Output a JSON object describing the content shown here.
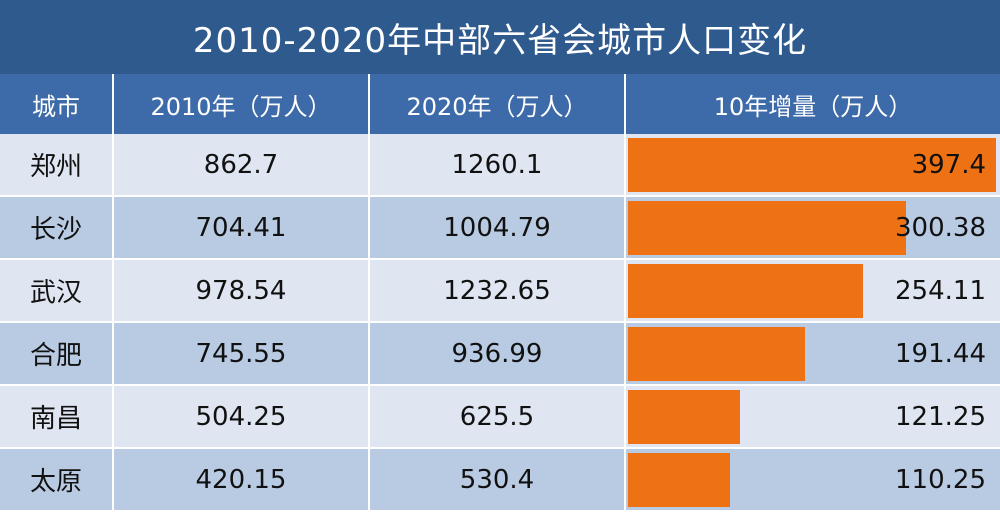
{
  "colors": {
    "title_bg": "#2e5a8e",
    "header_bg": "#3d6aa8",
    "bar": "#ee7213",
    "row_light": "#dfe6f1",
    "row_dark": "#b9cbe3"
  },
  "chart_data": {
    "type": "table",
    "title": "2010-2020年中部六省会城市人口变化",
    "columns": [
      "城市",
      "2010年（万人）",
      "2020年（万人）",
      "10年增量（万人）"
    ],
    "rows": [
      {
        "city": "郑州",
        "y2010": "862.7",
        "y2020": "1260.1",
        "increase": "397.4"
      },
      {
        "city": "长沙",
        "y2010": "704.41",
        "y2020": "1004.79",
        "increase": "300.38"
      },
      {
        "city": "武汉",
        "y2010": "978.54",
        "y2020": "1232.65",
        "increase": "254.11"
      },
      {
        "city": "合肥",
        "y2010": "745.55",
        "y2020": "936.99",
        "increase": "191.44"
      },
      {
        "city": "南昌",
        "y2010": "504.25",
        "y2020": "625.5",
        "increase": "121.25"
      },
      {
        "city": "太原",
        "y2010": "420.15",
        "y2020": "530.4",
        "increase": "110.25"
      }
    ],
    "increase_bar_max": 400
  }
}
